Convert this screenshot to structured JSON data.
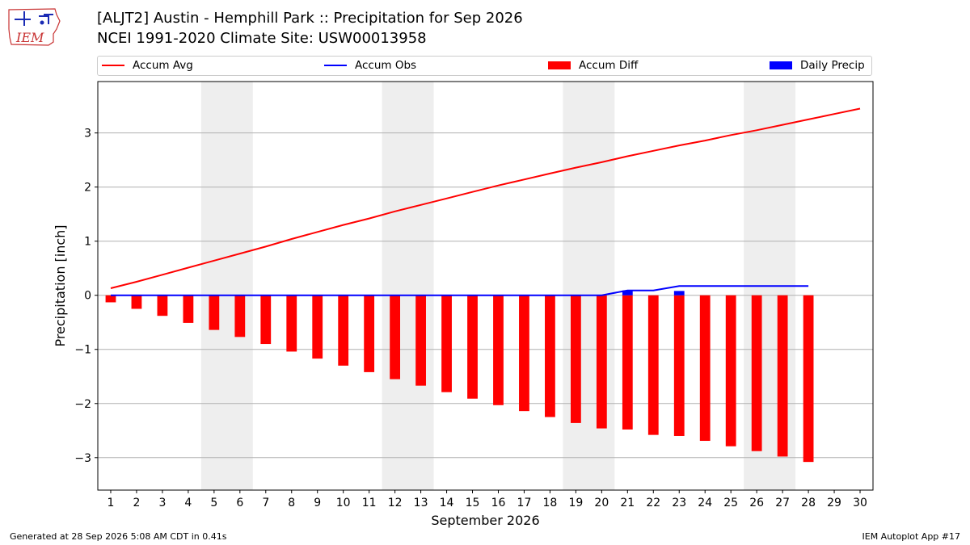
{
  "header": {
    "logo_text": "IEM",
    "title_line1": "[ALJT2] Austin - Hemphill Park :: Precipitation for Sep 2026",
    "title_line2": "NCEI 1991-2020 Climate Site: USW00013958"
  },
  "legend": {
    "accum_avg": "Accum Avg",
    "accum_obs": "Accum Obs",
    "accum_diff": "Accum Diff",
    "daily_precip": "Daily Precip"
  },
  "colors": {
    "accum_avg": "#ff0000",
    "accum_obs": "#0000ff",
    "accum_diff": "#ff0000",
    "daily_precip": "#0000ff",
    "weekend_shade": "#eeeeee",
    "grid": "#b0b0b0"
  },
  "chart_data": {
    "type": "bar",
    "xlabel": "September 2026",
    "ylabel": "Precipitation [inch]",
    "ylim": [
      -3.6,
      3.95
    ],
    "xlim": [
      0.5,
      30.5
    ],
    "yticks": [
      -3,
      -2,
      -1,
      0,
      1,
      2,
      3
    ],
    "ytick_labels": [
      "−3",
      "−2",
      "−1",
      "0",
      "1",
      "2",
      "3"
    ],
    "xticks": [
      1,
      2,
      3,
      4,
      5,
      6,
      7,
      8,
      9,
      10,
      11,
      12,
      13,
      14,
      15,
      16,
      17,
      18,
      19,
      20,
      21,
      22,
      23,
      24,
      25,
      26,
      27,
      28,
      29,
      30
    ],
    "grid": true,
    "legend_position": "top",
    "weekend_shading": [
      [
        5,
        6
      ],
      [
        12,
        13
      ],
      [
        19,
        20
      ],
      [
        26,
        27
      ]
    ],
    "series": [
      {
        "name": "Accum Avg",
        "kind": "line",
        "x": [
          1,
          2,
          3,
          4,
          5,
          6,
          7,
          8,
          9,
          10,
          11,
          12,
          13,
          14,
          15,
          16,
          17,
          18,
          19,
          20,
          21,
          22,
          23,
          24,
          25,
          26,
          27,
          28,
          29,
          30
        ],
        "values": [
          0.13,
          0.25,
          0.38,
          0.51,
          0.64,
          0.77,
          0.9,
          1.04,
          1.17,
          1.3,
          1.42,
          1.55,
          1.67,
          1.79,
          1.91,
          2.03,
          2.14,
          2.25,
          2.36,
          2.46,
          2.57,
          2.67,
          2.77,
          2.86,
          2.96,
          3.05,
          3.15,
          3.25,
          3.35,
          3.45
        ]
      },
      {
        "name": "Accum Obs",
        "kind": "line",
        "x": [
          1,
          2,
          3,
          4,
          5,
          6,
          7,
          8,
          9,
          10,
          11,
          12,
          13,
          14,
          15,
          16,
          17,
          18,
          19,
          20,
          21,
          22,
          23,
          24,
          25,
          26,
          27,
          28
        ],
        "values": [
          0,
          0,
          0,
          0,
          0,
          0,
          0,
          0,
          0,
          0,
          0,
          0,
          0,
          0,
          0,
          0,
          0,
          0,
          0,
          0,
          0.09,
          0.09,
          0.17,
          0.17,
          0.17,
          0.17,
          0.17,
          0.17
        ]
      },
      {
        "name": "Accum Diff",
        "kind": "bar",
        "x": [
          1,
          2,
          3,
          4,
          5,
          6,
          7,
          8,
          9,
          10,
          11,
          12,
          13,
          14,
          15,
          16,
          17,
          18,
          19,
          20,
          21,
          22,
          23,
          24,
          25,
          26,
          27,
          28
        ],
        "values": [
          -0.13,
          -0.25,
          -0.38,
          -0.51,
          -0.64,
          -0.77,
          -0.9,
          -1.04,
          -1.17,
          -1.3,
          -1.42,
          -1.55,
          -1.67,
          -1.79,
          -1.91,
          -2.03,
          -2.14,
          -2.25,
          -2.36,
          -2.46,
          -2.48,
          -2.58,
          -2.6,
          -2.69,
          -2.79,
          -2.88,
          -2.98,
          -3.08
        ]
      },
      {
        "name": "Daily Precip",
        "kind": "bar",
        "x": [
          21,
          23
        ],
        "values": [
          0.09,
          0.08
        ]
      }
    ]
  },
  "footer": {
    "generated": "Generated at 28 Sep 2026 5:08 AM CDT in 0.41s",
    "app": "IEM Autoplot App #17"
  }
}
